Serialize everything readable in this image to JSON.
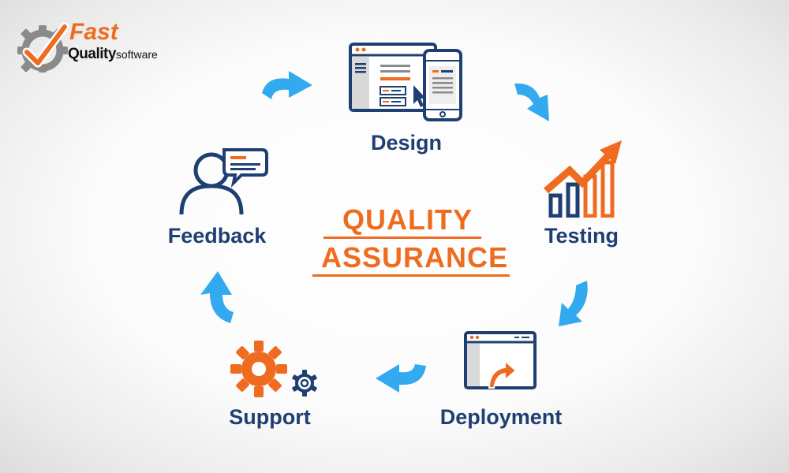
{
  "logo": {
    "line1": "Fast",
    "line2": "Quality",
    "line2_suffix": "software"
  },
  "center": {
    "line1": "QUALITY",
    "line2": "ASSURANCE"
  },
  "steps": {
    "design": "Design",
    "testing": "Testing",
    "deployment": "Deployment",
    "support": "Support",
    "feedback": "Feedback"
  },
  "colors": {
    "navy": "#1e3f72",
    "orange": "#ef6b1f",
    "blue_arrow": "#33aaf0"
  },
  "icons": {
    "logo": "gear-check-logo-icon",
    "design": "browser-and-phone-icon",
    "testing": "rising-bar-chart-icon",
    "deployment": "browser-upload-icon",
    "support": "gears-icon",
    "feedback": "person-speech-bubble-icon",
    "arrows": "curved-arrow-icon"
  }
}
